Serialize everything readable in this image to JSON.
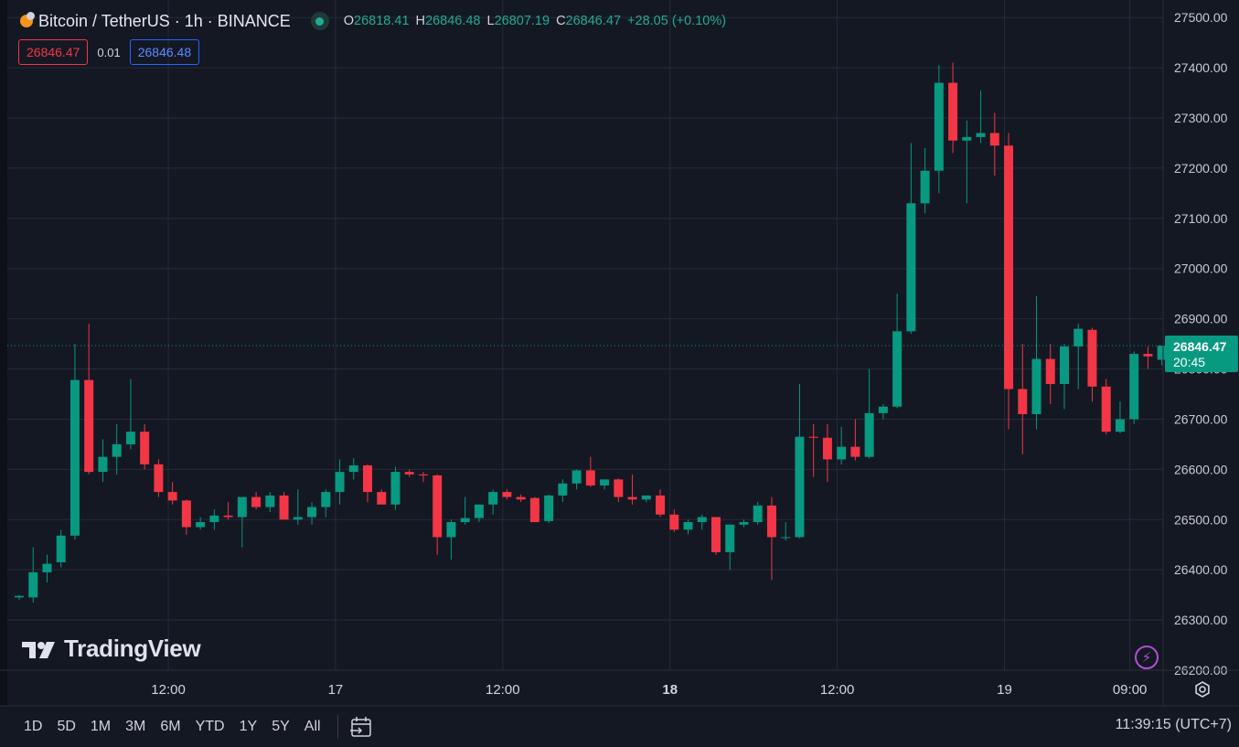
{
  "header": {
    "symbol": "Bitcoin / TetherUS · 1h · BINANCE",
    "ohlc": {
      "open_label": "O",
      "open": "26818.41",
      "high_label": "H",
      "high": "26846.48",
      "low_label": "L",
      "low": "26807.19",
      "close_label": "C",
      "close": "26846.47",
      "change": "+28.05 (+0.10%)"
    }
  },
  "trade": {
    "sell_price": "26846.47",
    "spread": "0.01",
    "buy_price": "26846.48"
  },
  "current_price": {
    "value": "26846.47",
    "countdown": "20:45"
  },
  "branding": {
    "logo_text": "TradingView"
  },
  "bottom_bar": {
    "ranges": [
      "1D",
      "5D",
      "1M",
      "3M",
      "6M",
      "YTD",
      "1Y",
      "5Y",
      "All"
    ],
    "clock": "11:39:15 (UTC+7)"
  },
  "icons": {
    "coin": "bitcoin-coin-icon",
    "live": "market-open-dot-icon",
    "bolt": "lightning-icon",
    "settings": "gear-icon",
    "goto_date": "calendar-goto-icon",
    "logo": "tradingview-logo-icon"
  },
  "colors": {
    "up": "#089981",
    "down": "#f23645",
    "background": "#141823",
    "grid": "#262b38",
    "price_label": "#089981"
  },
  "chart_data": {
    "type": "candlestick",
    "title": "Bitcoin / TetherUS · 1h · BINANCE",
    "y_ticks": [
      "27500.00",
      "27400.00",
      "27300.00",
      "27200.00",
      "27100.00",
      "27000.00",
      "26900.00",
      "26800.00",
      "26700.00",
      "26600.00",
      "26500.00",
      "26400.00",
      "26300.00",
      "26200.00"
    ],
    "x_ticks": [
      {
        "label": "12:00",
        "bold": false,
        "at_candle": 10.7
      },
      {
        "label": "17",
        "bold": false,
        "at_candle": 22.7
      },
      {
        "label": "12:00",
        "bold": false,
        "at_candle": 34.7
      },
      {
        "label": "18",
        "bold": true,
        "at_candle": 46.7
      },
      {
        "label": "12:00",
        "bold": false,
        "at_candle": 58.7
      },
      {
        "label": "19",
        "bold": false,
        "at_candle": 70.7
      },
      {
        "label": "09:00",
        "bold": false,
        "at_candle": 79.7
      }
    ],
    "ylim": [
      26200,
      27535
    ],
    "current_price": 26846.47,
    "grid": true,
    "candles": [
      {
        "o": 26345,
        "h": 26350,
        "l": 26340,
        "c": 26348
      },
      {
        "o": 26345,
        "h": 26445,
        "l": 26335,
        "c": 26395
      },
      {
        "o": 26395,
        "h": 26430,
        "l": 26375,
        "c": 26412
      },
      {
        "o": 26415,
        "h": 26480,
        "l": 26405,
        "c": 26468
      },
      {
        "o": 26468,
        "h": 26850,
        "l": 26460,
        "c": 26778
      },
      {
        "o": 26778,
        "h": 26890,
        "l": 26590,
        "c": 26595
      },
      {
        "o": 26595,
        "h": 26660,
        "l": 26575,
        "c": 26625
      },
      {
        "o": 26625,
        "h": 26690,
        "l": 26590,
        "c": 26650
      },
      {
        "o": 26650,
        "h": 26780,
        "l": 26640,
        "c": 26675
      },
      {
        "o": 26675,
        "h": 26690,
        "l": 26600,
        "c": 26610
      },
      {
        "o": 26610,
        "h": 26620,
        "l": 26545,
        "c": 26555
      },
      {
        "o": 26555,
        "h": 26575,
        "l": 26530,
        "c": 26538
      },
      {
        "o": 26538,
        "h": 26540,
        "l": 26470,
        "c": 26485
      },
      {
        "o": 26485,
        "h": 26505,
        "l": 26480,
        "c": 26495
      },
      {
        "o": 26495,
        "h": 26520,
        "l": 26480,
        "c": 26508
      },
      {
        "o": 26508,
        "h": 26535,
        "l": 26500,
        "c": 26505
      },
      {
        "o": 26505,
        "h": 26545,
        "l": 26445,
        "c": 26545
      },
      {
        "o": 26545,
        "h": 26555,
        "l": 26520,
        "c": 26525
      },
      {
        "o": 26525,
        "h": 26555,
        "l": 26515,
        "c": 26548
      },
      {
        "o": 26548,
        "h": 26555,
        "l": 26500,
        "c": 26500
      },
      {
        "o": 26500,
        "h": 26560,
        "l": 26490,
        "c": 26505
      },
      {
        "o": 26505,
        "h": 26535,
        "l": 26490,
        "c": 26525
      },
      {
        "o": 26525,
        "h": 26560,
        "l": 26505,
        "c": 26555
      },
      {
        "o": 26555,
        "h": 26620,
        "l": 26530,
        "c": 26595
      },
      {
        "o": 26595,
        "h": 26622,
        "l": 26580,
        "c": 26608
      },
      {
        "o": 26608,
        "h": 26610,
        "l": 26535,
        "c": 26555
      },
      {
        "o": 26555,
        "h": 26560,
        "l": 26530,
        "c": 26530
      },
      {
        "o": 26530,
        "h": 26605,
        "l": 26520,
        "c": 26595
      },
      {
        "o": 26595,
        "h": 26600,
        "l": 26585,
        "c": 26590
      },
      {
        "o": 26590,
        "h": 26595,
        "l": 26575,
        "c": 26588
      },
      {
        "o": 26588,
        "h": 26590,
        "l": 26430,
        "c": 26465
      },
      {
        "o": 26465,
        "h": 26500,
        "l": 26420,
        "c": 26495
      },
      {
        "o": 26495,
        "h": 26545,
        "l": 26490,
        "c": 26503
      },
      {
        "o": 26503,
        "h": 26530,
        "l": 26495,
        "c": 26530
      },
      {
        "o": 26530,
        "h": 26560,
        "l": 26510,
        "c": 26555
      },
      {
        "o": 26555,
        "h": 26560,
        "l": 26540,
        "c": 26545
      },
      {
        "o": 26545,
        "h": 26550,
        "l": 26535,
        "c": 26540
      },
      {
        "o": 26543,
        "h": 26545,
        "l": 26495,
        "c": 26495
      },
      {
        "o": 26497,
        "h": 26550,
        "l": 26493,
        "c": 26548
      },
      {
        "o": 26548,
        "h": 26580,
        "l": 26535,
        "c": 26572
      },
      {
        "o": 26572,
        "h": 26600,
        "l": 26560,
        "c": 26598
      },
      {
        "o": 26598,
        "h": 26625,
        "l": 26565,
        "c": 26568
      },
      {
        "o": 26568,
        "h": 26580,
        "l": 26560,
        "c": 26580
      },
      {
        "o": 26580,
        "h": 26582,
        "l": 26535,
        "c": 26545
      },
      {
        "o": 26545,
        "h": 26590,
        "l": 26530,
        "c": 26540
      },
      {
        "o": 26540,
        "h": 26548,
        "l": 26535,
        "c": 26548
      },
      {
        "o": 26548,
        "h": 26560,
        "l": 26505,
        "c": 26510
      },
      {
        "o": 26510,
        "h": 26520,
        "l": 26475,
        "c": 26480
      },
      {
        "o": 26480,
        "h": 26500,
        "l": 26470,
        "c": 26495
      },
      {
        "o": 26495,
        "h": 26510,
        "l": 26480,
        "c": 26505
      },
      {
        "o": 26505,
        "h": 26505,
        "l": 26430,
        "c": 26435
      },
      {
        "o": 26435,
        "h": 26490,
        "l": 26400,
        "c": 26490
      },
      {
        "o": 26490,
        "h": 26500,
        "l": 26485,
        "c": 26495
      },
      {
        "o": 26495,
        "h": 26535,
        "l": 26490,
        "c": 26528
      },
      {
        "o": 26528,
        "h": 26545,
        "l": 26380,
        "c": 26465
      },
      {
        "o": 26465,
        "h": 26495,
        "l": 26458,
        "c": 26465
      },
      {
        "o": 26465,
        "h": 26770,
        "l": 26463,
        "c": 26665
      },
      {
        "o": 26665,
        "h": 26690,
        "l": 26585,
        "c": 26663
      },
      {
        "o": 26663,
        "h": 26690,
        "l": 26575,
        "c": 26620
      },
      {
        "o": 26620,
        "h": 26685,
        "l": 26610,
        "c": 26645
      },
      {
        "o": 26645,
        "h": 26700,
        "l": 26618,
        "c": 26625
      },
      {
        "o": 26625,
        "h": 26800,
        "l": 26622,
        "c": 26712
      },
      {
        "o": 26712,
        "h": 26730,
        "l": 26700,
        "c": 26725
      },
      {
        "o": 26725,
        "h": 26950,
        "l": 26722,
        "c": 26875
      },
      {
        "o": 26875,
        "h": 27250,
        "l": 26870,
        "c": 27130
      },
      {
        "o": 27130,
        "h": 27240,
        "l": 27110,
        "c": 27195
      },
      {
        "o": 27195,
        "h": 27405,
        "l": 27150,
        "c": 27370
      },
      {
        "o": 27370,
        "h": 27410,
        "l": 27230,
        "c": 27255
      },
      {
        "o": 27255,
        "h": 27295,
        "l": 27130,
        "c": 27262
      },
      {
        "o": 27262,
        "h": 27355,
        "l": 27250,
        "c": 27270
      },
      {
        "o": 27270,
        "h": 27310,
        "l": 27185,
        "c": 27245
      },
      {
        "o": 27245,
        "h": 27270,
        "l": 26680,
        "c": 26760
      },
      {
        "o": 26760,
        "h": 26850,
        "l": 26630,
        "c": 26710
      },
      {
        "o": 26710,
        "h": 26945,
        "l": 26680,
        "c": 26820
      },
      {
        "o": 26820,
        "h": 26850,
        "l": 26730,
        "c": 26770
      },
      {
        "o": 26770,
        "h": 26850,
        "l": 26720,
        "c": 26845
      },
      {
        "o": 26845,
        "h": 26890,
        "l": 26760,
        "c": 26880
      },
      {
        "o": 26878,
        "h": 26882,
        "l": 26735,
        "c": 26765
      },
      {
        "o": 26765,
        "h": 26780,
        "l": 26670,
        "c": 26675
      },
      {
        "o": 26675,
        "h": 26735,
        "l": 26672,
        "c": 26700
      },
      {
        "o": 26700,
        "h": 26835,
        "l": 26690,
        "c": 26830
      },
      {
        "o": 26830,
        "h": 26845,
        "l": 26800,
        "c": 26825
      },
      {
        "o": 26818.41,
        "h": 26846.48,
        "l": 26807.19,
        "c": 26846.47
      }
    ]
  }
}
